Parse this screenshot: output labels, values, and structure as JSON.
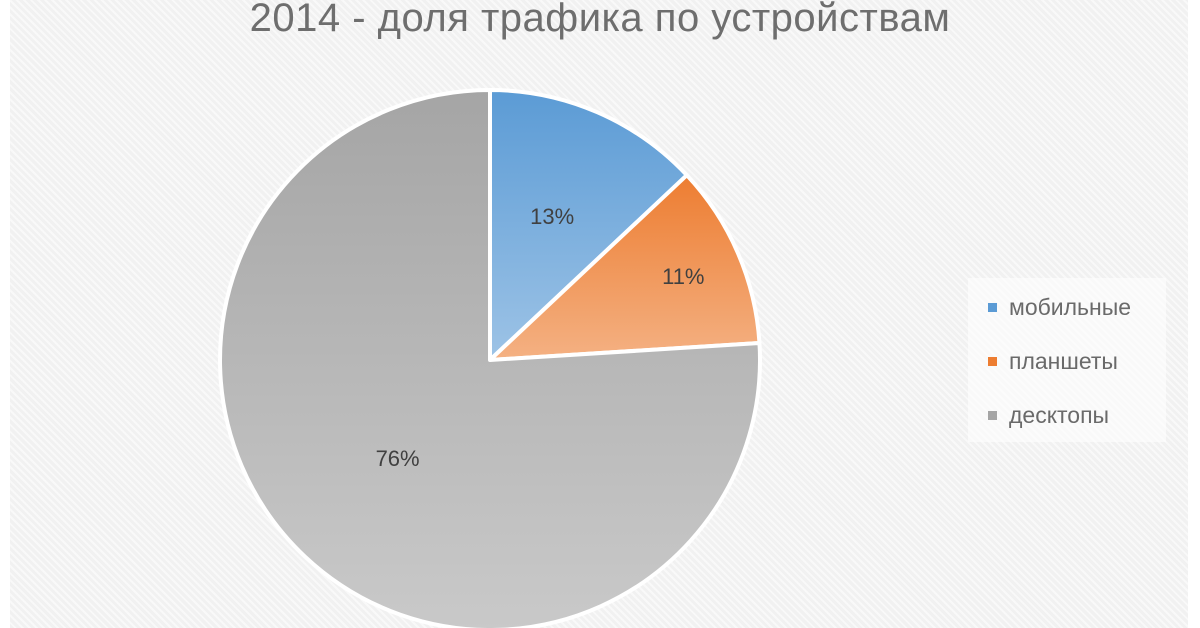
{
  "chart_data": {
    "type": "pie",
    "title": "2014 - доля трафика по устройствам",
    "categories": [
      "мобильные",
      "планшеты",
      "десктопы"
    ],
    "values": [
      13,
      11,
      76
    ],
    "labels": [
      "13%",
      "11%",
      "76%"
    ],
    "colors": [
      "#5b9bd5",
      "#ed7d31",
      "#a5a5a5"
    ],
    "legend_position": "right"
  }
}
